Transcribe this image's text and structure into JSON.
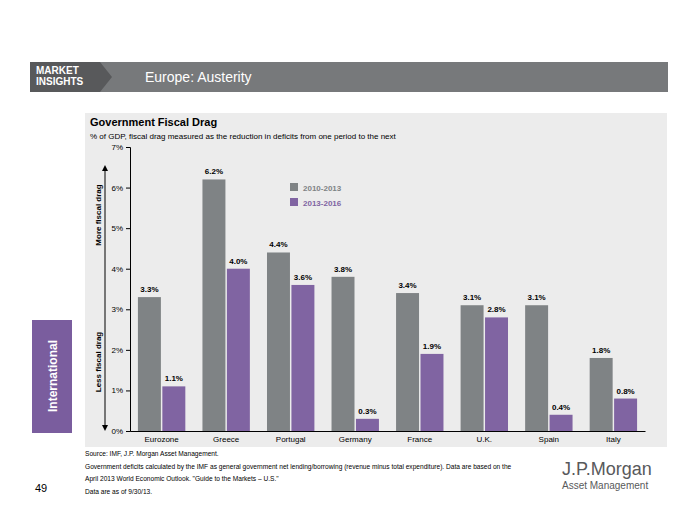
{
  "page": {
    "badge": [
      "MARKET",
      "INSIGHTS"
    ],
    "section": "Europe: Austerity",
    "tab": "International",
    "page_number": 49,
    "footnotes": [
      "Source: IMF, J.P. Morgan Asset Management.",
      "Government deficits calculated by the IMF as general government net lending/borrowing (revenue minus total expenditure). Data are based on the",
      "April 2013 World Economic Outlook. \"Guide to the Markets – U.S.\"",
      "Data are as of 9/30/13."
    ],
    "logo": [
      "J.P.Morgan",
      "Asset Management"
    ]
  },
  "chart_data": {
    "type": "bar",
    "title": "Government Fiscal Drag",
    "subtitle": "% of GDP, fiscal drag measured as the reduction in deficits from one period to the next",
    "annotations": [
      "More fiscal drag",
      "Less fiscal drag"
    ],
    "categories": [
      "Eurozone",
      "Greece",
      "Portugal",
      "Germany",
      "France",
      "U.K.",
      "Spain",
      "Italy"
    ],
    "series": [
      {
        "name": "2010-2013",
        "color": "#7f8385",
        "values": [
          3.3,
          6.2,
          4.4,
          3.8,
          3.4,
          3.1,
          3.1,
          1.8
        ],
        "value_labels": [
          "3.3%",
          "6.2%",
          "4.4%",
          "3.8%",
          "3.4%",
          "3.1%",
          "3.1%",
          "1.8%"
        ]
      },
      {
        "name": "2013-2016",
        "color": "#8064a2",
        "values": [
          1.1,
          4.0,
          3.6,
          0.3,
          1.9,
          2.8,
          0.4,
          0.8
        ],
        "value_labels": [
          "1.1%",
          "4.0%",
          "3.6%",
          "0.3%",
          "1.9%",
          "2.8%",
          "0.4%",
          "0.8%"
        ]
      }
    ],
    "ylim": [
      0,
      7
    ],
    "yticks": [
      {
        "value": 0,
        "label": "0%"
      },
      {
        "value": 1,
        "label": "1%"
      },
      {
        "value": 2,
        "label": "2%"
      },
      {
        "value": 3,
        "label": "3%"
      },
      {
        "value": 4,
        "label": "4%"
      },
      {
        "value": 5,
        "label": "5%"
      },
      {
        "value": 6,
        "label": "6%"
      },
      {
        "value": 7,
        "label": "7%"
      }
    ],
    "grid": false,
    "legend": "top",
    "data_labels": true
  }
}
